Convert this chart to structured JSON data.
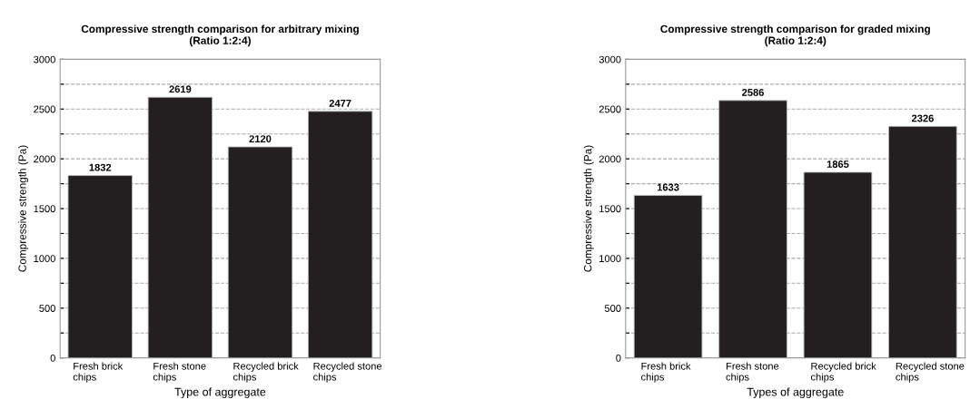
{
  "chart_data": [
    {
      "type": "bar",
      "title": "Compressive strength comparison for arbitrary mixing\n(Ratio 1:2:4)",
      "xlabel": "Type of aggregate",
      "ylabel": "Compressive strength (Pa)",
      "categories": [
        "Fresh brick\nchips",
        "Fresh stone\nchips",
        "Recycled brick\nchips",
        "Recycled stone\nchips"
      ],
      "values": [
        1832,
        2619,
        2120,
        2477
      ],
      "color": "#231f20",
      "data_labels": true,
      "grid": "y",
      "ylim": [
        0,
        3000
      ],
      "yticks": [
        0,
        {
          "value": 250,
          "label": null
        },
        500,
        {
          "value": 750,
          "label": null
        },
        1000,
        {
          "value": 1250,
          "label": null
        },
        1500,
        {
          "value": 1750,
          "label": null
        },
        2000,
        {
          "value": 2250,
          "label": null
        },
        2500,
        {
          "value": 2750,
          "label": null
        },
        3000
      ]
    },
    {
      "type": "bar",
      "title": "Compressive strength comparison for graded mixing\n(Ratio 1:2:4)",
      "xlabel": "Types of aggregate",
      "ylabel": "Compressive strength (Pa)",
      "categories": [
        "Fresh brick\nchips",
        "Fresh stone\nchips",
        "Recycled brick\nchips",
        "Recycled stone\nchips"
      ],
      "values": [
        1633,
        2586,
        1865,
        2326
      ],
      "color": "#231f20",
      "data_labels": true,
      "grid": "y",
      "ylim": [
        0,
        3000
      ],
      "yticks": [
        0,
        {
          "value": 250,
          "label": null
        },
        500,
        {
          "value": 750,
          "label": null
        },
        1000,
        {
          "value": 1250,
          "label": null
        },
        1500,
        {
          "value": 1750,
          "label": null
        },
        2000,
        {
          "value": 2250,
          "label": null
        },
        2500,
        {
          "value": 2750,
          "label": null
        },
        3000
      ]
    }
  ]
}
